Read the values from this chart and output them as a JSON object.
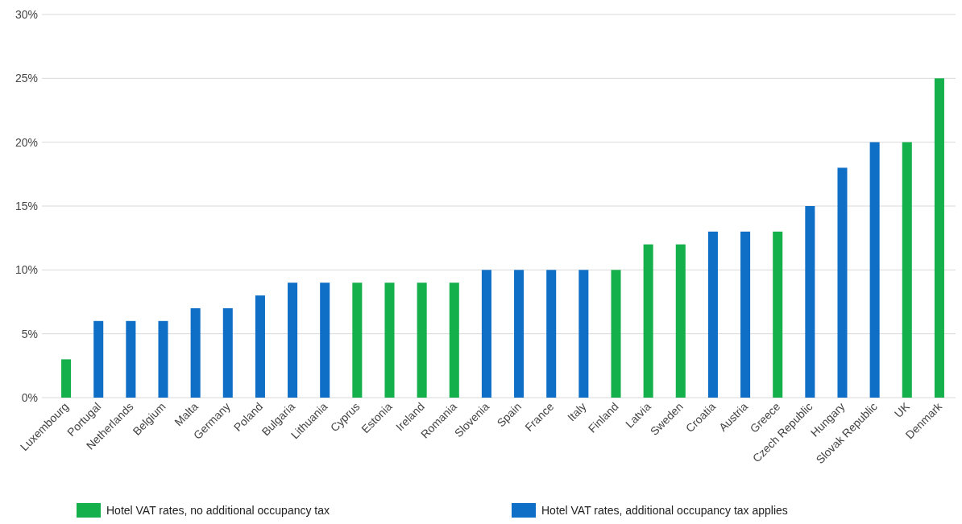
{
  "chart_data": {
    "type": "bar",
    "stacked": true,
    "categories": [
      "Luxembourg",
      "Portugal",
      "Netherlands",
      "Belgium",
      "Malta",
      "Germany",
      "Poland",
      "Bulgaria",
      "Lithuania",
      "Cyprus",
      "Estonia",
      "Ireland",
      "Romania",
      "Slovenia",
      "Spain",
      "France",
      "Italy",
      "Finland",
      "Latvia",
      "Sweden",
      "Croatia",
      "Austria",
      "Greece",
      "Czech Republic",
      "Hungary",
      "Slovak Republic",
      "UK",
      "Denmark"
    ],
    "series": [
      {
        "name": "Hotel VAT rates, no additional occupancy tax",
        "color": "#14b04c",
        "values": [
          3,
          null,
          null,
          null,
          null,
          null,
          null,
          null,
          null,
          9,
          9,
          9,
          9,
          null,
          null,
          null,
          null,
          10,
          12,
          12,
          null,
          null,
          13,
          null,
          null,
          null,
          20,
          25
        ]
      },
      {
        "name": "Hotel VAT rates, additional occupancy tax applies",
        "color": "#0f6fc6",
        "values": [
          null,
          6,
          6,
          6,
          7,
          7,
          8,
          9,
          9,
          null,
          null,
          null,
          null,
          10,
          10,
          10,
          10,
          null,
          null,
          null,
          13,
          13,
          null,
          15,
          18,
          20,
          null,
          null
        ]
      }
    ],
    "ylim": [
      0,
      30
    ],
    "yticks": [
      {
        "value": 0,
        "label": "0%"
      },
      {
        "value": 5,
        "label": "5%"
      },
      {
        "value": 10,
        "label": "10%"
      },
      {
        "value": 15,
        "label": "15%"
      },
      {
        "value": 20,
        "label": "20%"
      },
      {
        "value": 25,
        "label": "25%"
      },
      {
        "value": 30,
        "label": "30%"
      }
    ],
    "grid": "y",
    "legend": "bottom"
  }
}
